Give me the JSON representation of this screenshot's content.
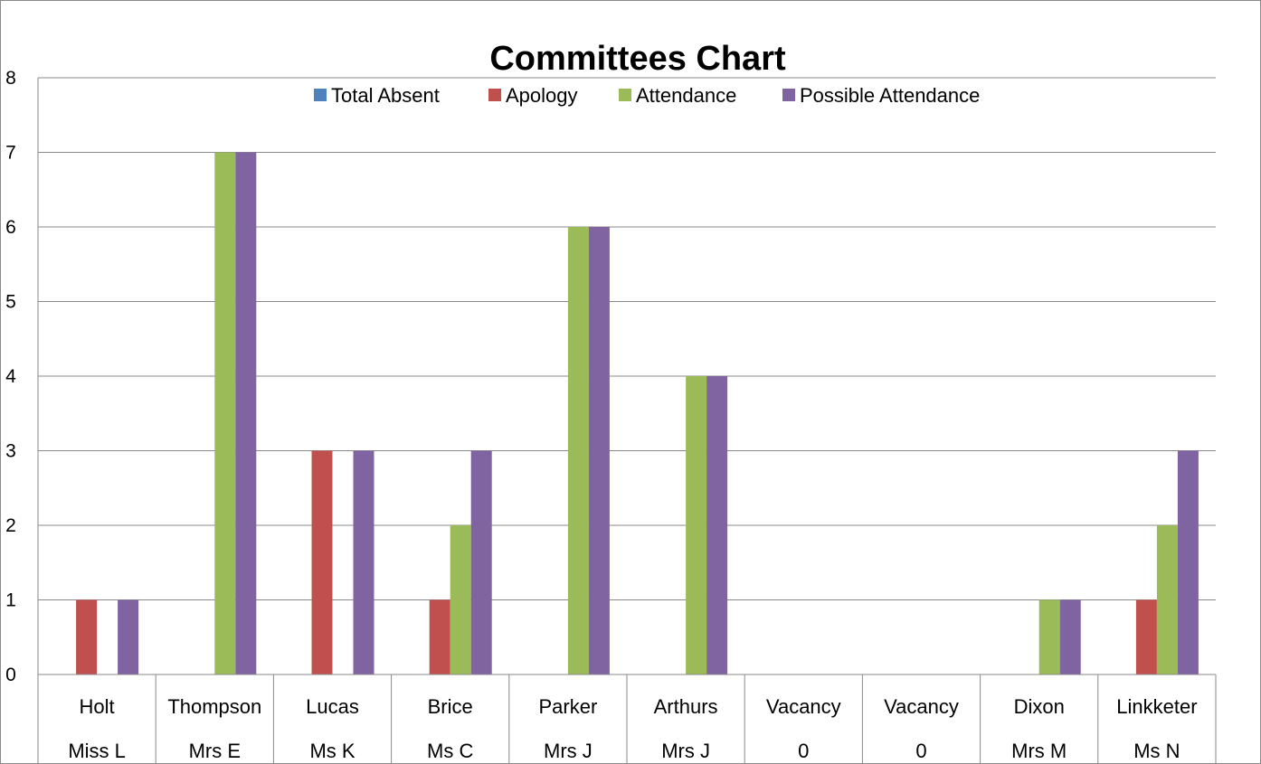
{
  "colors": {
    "Total Absent": "#4f81bd",
    "Apology": "#c0504d",
    "Attendance": "#9bbb59",
    "Possible Attendance": "#8064a2"
  },
  "chart_data": {
    "type": "bar",
    "title": "Committees Chart",
    "xlabel": "",
    "ylabel": "",
    "ylim": [
      0,
      8
    ],
    "yticks": [
      0,
      1,
      2,
      3,
      4,
      5,
      6,
      7,
      8
    ],
    "grid": true,
    "legend": "top-center",
    "categories": [
      {
        "surname": "Holt",
        "title": "Miss L"
      },
      {
        "surname": "Thompson",
        "title": "Mrs E"
      },
      {
        "surname": "Lucas",
        "title": "Ms K"
      },
      {
        "surname": "Brice",
        "title": "Ms C"
      },
      {
        "surname": "Parker",
        "title": "Mrs J"
      },
      {
        "surname": "Arthurs",
        "title": "Mrs J"
      },
      {
        "surname": "Vacancy",
        "title": "0"
      },
      {
        "surname": "Vacancy",
        "title": "0"
      },
      {
        "surname": "Dixon",
        "title": "Mrs M"
      },
      {
        "surname": "Linkketer",
        "title": "Ms N"
      }
    ],
    "series": [
      {
        "name": "Total Absent",
        "values": [
          0,
          0,
          0,
          0,
          0,
          0,
          0,
          0,
          0,
          0
        ]
      },
      {
        "name": "Apology",
        "values": [
          1,
          0,
          3,
          1,
          0,
          0,
          0,
          0,
          0,
          1
        ]
      },
      {
        "name": "Attendance",
        "values": [
          0,
          7,
          0,
          2,
          6,
          4,
          0,
          0,
          1,
          2
        ]
      },
      {
        "name": "Possible Attendance",
        "values": [
          1,
          7,
          3,
          3,
          6,
          4,
          0,
          0,
          1,
          3
        ]
      }
    ]
  }
}
